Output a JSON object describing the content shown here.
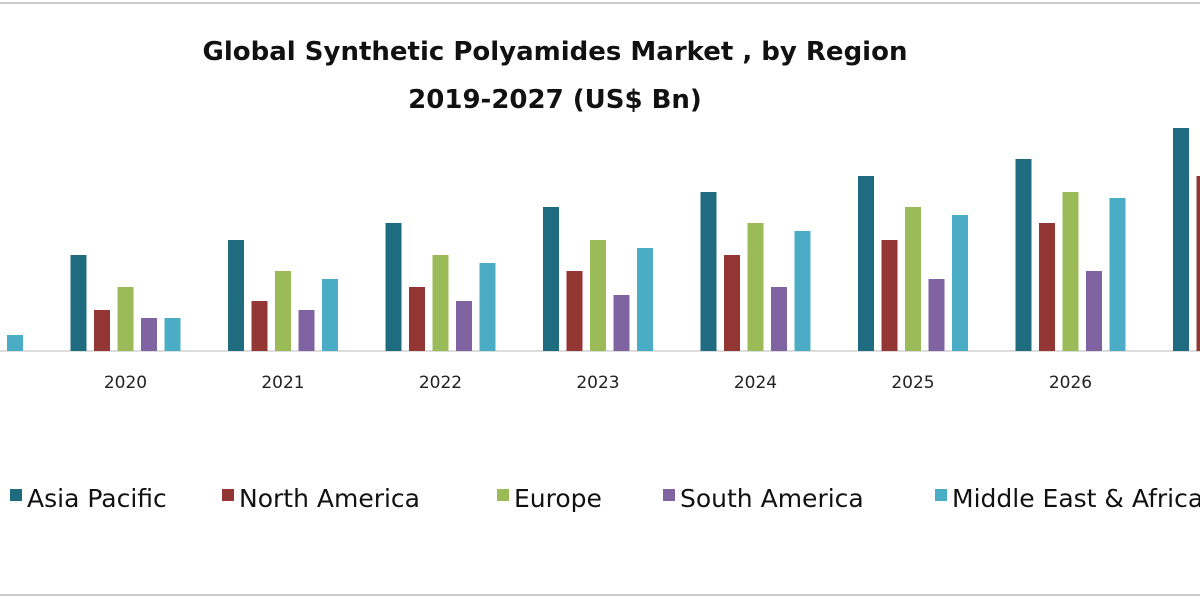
{
  "chart_data": {
    "type": "bar",
    "title": "Global Synthetic Polyamides Market , by Region",
    "subtitle": "2019-2027 (US$ Bn)",
    "categories": [
      null,
      "2020",
      "2021",
      "2022",
      "2023",
      "2024",
      "2025",
      "2026",
      null
    ],
    "ylim": [
      0,
      25
    ],
    "series": [
      {
        "name": "Asia Pacific",
        "color": "#1f6b7f",
        "values": [
          null,
          9.6,
          11.1,
          12.8,
          14.4,
          15.9,
          17.5,
          19.2,
          22.3
        ]
      },
      {
        "name": "North America",
        "color": "#943634",
        "values": [
          null,
          4.1,
          5.0,
          6.4,
          8.0,
          9.6,
          11.1,
          12.8,
          17.5
        ]
      },
      {
        "name": "Europe",
        "color": "#9bbb59",
        "values": [
          null,
          6.4,
          8.0,
          9.6,
          11.1,
          12.8,
          14.4,
          15.9,
          null
        ]
      },
      {
        "name": "South America",
        "color": "#8064a2",
        "values": [
          null,
          3.3,
          4.1,
          5.0,
          5.6,
          6.4,
          7.2,
          8.0,
          null
        ]
      },
      {
        "name": "Middle East & Africa",
        "color": "#4bacc6",
        "values": [
          1.6,
          3.3,
          7.2,
          8.8,
          10.3,
          12.0,
          13.6,
          15.3,
          null
        ]
      }
    ]
  }
}
